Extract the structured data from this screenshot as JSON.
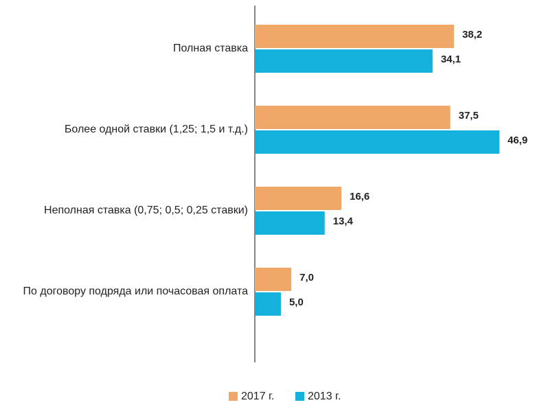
{
  "chart_data": {
    "type": "barh",
    "categories": [
      "Полная ставка",
      "Более одной ставки (1,25; 1,5 и т.д.)",
      "Неполная ставка  (0,75; 0,5; 0,25 ставки)",
      "По договору подряда или почасовая оплата"
    ],
    "series": [
      {
        "name": "2017 г.",
        "color": "#f0a868",
        "values": [
          38.2,
          37.5,
          16.6,
          7.0
        ],
        "value_labels": [
          "38,2",
          "37,5",
          "16,6",
          "7,0"
        ]
      },
      {
        "name": "2013 г.",
        "color": "#14b1dc",
        "values": [
          34.1,
          46.9,
          13.4,
          5.0
        ],
        "value_labels": [
          "34,1",
          "46,9",
          "13,4",
          "5,0"
        ]
      }
    ],
    "xlim": [
      0,
      50
    ],
    "legend": "bottom"
  }
}
